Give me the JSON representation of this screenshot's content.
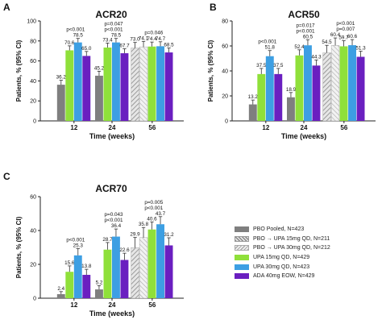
{
  "colors": {
    "pbo": "#7f7f7f",
    "pbo15": "#c9c9c9",
    "pbo30": "#e3e3e3",
    "upa15": "#8fe03a",
    "upa30": "#3d9fe3",
    "ada": "#6a1fc0",
    "axis": "#222222"
  },
  "legend": [
    {
      "key": "pbo",
      "label": "PBO Pooled, N=423",
      "pattern": "solid"
    },
    {
      "key": "pbo15",
      "label": "PBO → UPA 15mg QD, N=211",
      "pattern": "hatch"
    },
    {
      "key": "pbo30",
      "label": "PBO → UPA 30mg QD, N=212",
      "pattern": "hatch-light"
    },
    {
      "key": "upa15",
      "label": "UPA 15mg QD, N=429",
      "pattern": "solid"
    },
    {
      "key": "upa30",
      "label": "UPA 30mg QD, N=423",
      "pattern": "solid"
    },
    {
      "key": "ada",
      "label": "ADA 40mg EOW, N=429",
      "pattern": "solid"
    }
  ],
  "chart_data": [
    {
      "type": "bar",
      "panel": "A",
      "title": "ACR20",
      "xlabel": "Time (weeks)",
      "ylabel": "Patients, % (95% CI)",
      "ylim": [
        0,
        100
      ],
      "yticks": [
        0,
        20,
        40,
        60,
        80,
        100
      ],
      "groups": [
        {
          "x": "12",
          "bars": [
            {
              "key": "pbo",
              "value": 36.2,
              "label": "36.2",
              "err": 4.5
            },
            {
              "key": "upa15",
              "value": 70.6,
              "label": "70.6",
              "err": 4.5
            },
            {
              "key": "upa30",
              "value": 78.5,
              "label": "78.5",
              "err": 4
            },
            {
              "key": "ada",
              "value": 65.0,
              "label": "65.0",
              "err": 4.5
            }
          ],
          "pvalues": [
            "p<0.001"
          ]
        },
        {
          "x": "24",
          "bars": [
            {
              "key": "pbo",
              "value": 45.2,
              "label": "45.2",
              "err": 4.5
            },
            {
              "key": "upa15",
              "value": 73.4,
              "label": "73.4",
              "err": 4.5
            },
            {
              "key": "upa30",
              "value": 78.5,
              "label": "78.5",
              "err": 4
            },
            {
              "key": "ada",
              "value": 67.7,
              "label": "67.7",
              "err": 4.5
            }
          ],
          "pvalues": [
            "p=0.047",
            "p<0.001"
          ]
        },
        {
          "x": "56",
          "bars": [
            {
              "key": "pbo15",
              "value": 73.0,
              "label": "73.0",
              "err": 5.5
            },
            {
              "key": "pbo30",
              "value": 74.1,
              "label": "74.1",
              "err": 5.5
            },
            {
              "key": "upa15",
              "value": 74.4,
              "label": "74.4",
              "err": 4.5
            },
            {
              "key": "upa30",
              "value": 74.7,
              "label": "74.7",
              "err": 4.5
            },
            {
              "key": "ada",
              "value": 68.5,
              "label": "68.5",
              "err": 4.5
            }
          ],
          "pvalues": [
            "p=0.046"
          ]
        }
      ]
    },
    {
      "type": "bar",
      "panel": "B",
      "title": "ACR50",
      "xlabel": "Time (weeks)",
      "ylabel": "Patients, % (95% CI)",
      "ylim": [
        0,
        80
      ],
      "yticks": [
        0,
        20,
        40,
        60,
        80
      ],
      "groups": [
        {
          "x": "12",
          "bars": [
            {
              "key": "pbo",
              "value": 13.2,
              "label": "13.2",
              "err": 3.5
            },
            {
              "key": "upa15",
              "value": 37.5,
              "label": "37.5",
              "err": 4.5
            },
            {
              "key": "upa30",
              "value": 51.8,
              "label": "51.8",
              "err": 4.5
            },
            {
              "key": "ada",
              "value": 37.5,
              "label": "37.5",
              "err": 4.5
            }
          ],
          "pvalues": [
            "p<0.001"
          ]
        },
        {
          "x": "24",
          "bars": [
            {
              "key": "pbo",
              "value": 18.9,
              "label": "18.9",
              "err": 3.8
            },
            {
              "key": "upa15",
              "value": 52.4,
              "label": "52.4",
              "err": 4.5
            },
            {
              "key": "upa30",
              "value": 60.5,
              "label": "60.5",
              "err": 4.5
            },
            {
              "key": "ada",
              "value": 44.3,
              "label": "44.3",
              "err": 4.5
            }
          ],
          "pvalues": [
            "p=0.017",
            "p<0.001"
          ]
        },
        {
          "x": "56",
          "bars": [
            {
              "key": "pbo15",
              "value": 54.5,
              "label": "54.5",
              "err": 6
            },
            {
              "key": "pbo30",
              "value": 60.4,
              "label": "60.4",
              "err": 6
            },
            {
              "key": "upa15",
              "value": 59.7,
              "label": "59.7",
              "err": 4.5
            },
            {
              "key": "upa30",
              "value": 60.6,
              "label": "60.6",
              "err": 4.5
            },
            {
              "key": "ada",
              "value": 51.3,
              "label": "51.3",
              "err": 4.5
            }
          ],
          "pvalues": [
            "p<0.001",
            "p=0.007"
          ]
        }
      ]
    },
    {
      "type": "bar",
      "panel": "C",
      "title": "ACR70",
      "xlabel": "Time (weeks)",
      "ylabel": "Patients, % (95% CI)",
      "ylim": [
        0,
        60
      ],
      "yticks": [
        0,
        20,
        40,
        60
      ],
      "groups": [
        {
          "x": "12",
          "bars": [
            {
              "key": "pbo",
              "value": 2.4,
              "label": "2.4",
              "err": 1.5
            },
            {
              "key": "upa15",
              "value": 15.6,
              "label": "15.6",
              "err": 3.5
            },
            {
              "key": "upa30",
              "value": 25.3,
              "label": "25.3",
              "err": 4
            },
            {
              "key": "ada",
              "value": 13.8,
              "label": "13.8",
              "err": 3.3
            }
          ],
          "pvalues": [
            "p<0.001"
          ]
        },
        {
          "x": "24",
          "bars": [
            {
              "key": "pbo",
              "value": 5.2,
              "label": "5.2",
              "err": 2.2
            },
            {
              "key": "upa15",
              "value": 28.7,
              "label": "28.7",
              "err": 4.2
            },
            {
              "key": "upa30",
              "value": 36.4,
              "label": "36.4",
              "err": 4.5
            },
            {
              "key": "ada",
              "value": 22.6,
              "label": "22.6",
              "err": 4
            }
          ],
          "pvalues": [
            "p=0.043",
            "p<0.001"
          ]
        },
        {
          "x": "56",
          "bars": [
            {
              "key": "pbo15",
              "value": 29.9,
              "label": "29.9",
              "err": 6
            },
            {
              "key": "pbo30",
              "value": 35.8,
              "label": "35.8",
              "err": 6
            },
            {
              "key": "upa15",
              "value": 40.6,
              "label": "40.6",
              "err": 4.5
            },
            {
              "key": "upa30",
              "value": 43.7,
              "label": "43.7",
              "err": 4.5
            },
            {
              "key": "ada",
              "value": 31.2,
              "label": "31.2",
              "err": 4.5
            }
          ],
          "pvalues": [
            "p=0.005",
            "p<0.001"
          ]
        }
      ]
    }
  ]
}
